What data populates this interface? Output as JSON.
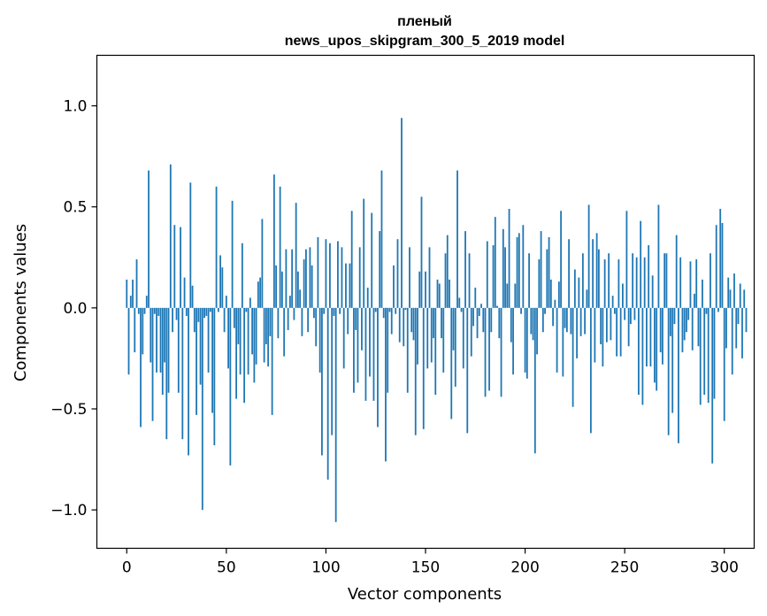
{
  "chart_data": {
    "type": "bar",
    "title": [
      "пленый",
      "news_upos_skipgram_300_5_2019 model"
    ],
    "xlabel": "Vector components",
    "ylabel": "Components values",
    "xlim": [
      -15,
      315
    ],
    "ylim": [
      -1.19,
      1.25
    ],
    "xticks": [
      0,
      50,
      100,
      150,
      200,
      250,
      300
    ],
    "yticks": [
      -1.0,
      -0.5,
      0.0,
      0.5,
      1.0
    ],
    "ytick_labels": [
      "−1.0",
      "−0.5",
      "0.0",
      "0.5",
      "1.0"
    ],
    "bar_color": "#1f77b4",
    "values": [
      0.14,
      -0.33,
      0.06,
      0.14,
      -0.22,
      0.24,
      -0.03,
      -0.59,
      -0.23,
      -0.03,
      0.06,
      0.68,
      -0.27,
      -0.56,
      -0.03,
      -0.32,
      -0.04,
      -0.32,
      -0.43,
      -0.27,
      -0.65,
      -0.42,
      0.71,
      -0.12,
      0.41,
      -0.06,
      -0.42,
      0.4,
      -0.65,
      0.15,
      -0.04,
      -0.73,
      0.62,
      0.11,
      -0.12,
      -0.53,
      -0.07,
      -0.38,
      -1.0,
      -0.05,
      -0.04,
      -0.32,
      -0.02,
      -0.52,
      -0.68,
      0.6,
      -0.02,
      0.26,
      0.2,
      -0.12,
      0.06,
      -0.3,
      -0.78,
      0.53,
      -0.1,
      -0.45,
      -0.18,
      -0.33,
      0.32,
      -0.47,
      -0.02,
      -0.33,
      0.05,
      -0.23,
      -0.37,
      -0.28,
      0.13,
      0.15,
      0.44,
      -0.27,
      -0.18,
      -0.29,
      -0.14,
      -0.53,
      0.66,
      0.21,
      -0.15,
      0.6,
      0.18,
      -0.24,
      0.29,
      -0.11,
      0.06,
      0.29,
      -0.06,
      0.52,
      0.18,
      0.09,
      -0.14,
      0.24,
      0.29,
      -0.12,
      0.3,
      0.21,
      -0.05,
      -0.19,
      0.35,
      -0.32,
      -0.73,
      -0.03,
      0.34,
      -0.85,
      0.32,
      -0.63,
      -0.04,
      -1.06,
      0.33,
      -0.03,
      0.3,
      -0.3,
      0.22,
      -0.13,
      0.22,
      0.48,
      -0.42,
      -0.11,
      -0.37,
      0.3,
      -0.21,
      0.54,
      -0.46,
      0.1,
      -0.34,
      0.47,
      -0.46,
      -0.02,
      -0.59,
      0.38,
      0.68,
      -0.05,
      -0.76,
      -0.42,
      -0.02,
      -0.13,
      0.21,
      -0.03,
      0.34,
      -0.17,
      0.94,
      -0.19,
      -0.01,
      -0.42,
      0.3,
      -0.12,
      -0.16,
      -0.63,
      -0.28,
      0.18,
      0.55,
      -0.6,
      0.18,
      -0.3,
      0.3,
      -0.27,
      -0.15,
      -0.43,
      0.14,
      0.12,
      -0.15,
      -0.32,
      0.27,
      0.36,
      0.14,
      -0.55,
      -0.21,
      -0.39,
      0.68,
      0.05,
      -0.02,
      -0.3,
      0.38,
      -0.62,
      0.27,
      -0.24,
      -0.09,
      0.1,
      -0.15,
      -0.04,
      0.02,
      -0.12,
      -0.44,
      0.33,
      -0.41,
      -0.12,
      0.31,
      0.45,
      0.01,
      -0.15,
      -0.44,
      0.39,
      0.3,
      0.12,
      0.49,
      -0.17,
      -0.33,
      0.12,
      0.35,
      0.37,
      -0.03,
      0.41,
      -0.32,
      -0.35,
      0.27,
      -0.13,
      -0.16,
      -0.72,
      -0.23,
      0.24,
      0.38,
      -0.12,
      -0.03,
      0.29,
      0.35,
      0.14,
      -0.09,
      0.04,
      -0.32,
      0.13,
      0.48,
      -0.34,
      -0.1,
      -0.12,
      0.34,
      -0.13,
      -0.49,
      0.19,
      -0.25,
      0.15,
      -0.14,
      0.27,
      -0.13,
      0.09,
      0.51,
      -0.62,
      0.34,
      -0.27,
      0.37,
      0.29,
      -0.18,
      -0.29,
      0.24,
      -0.17,
      0.27,
      -0.16,
      0.06,
      -0.03,
      -0.24,
      0.24,
      -0.24,
      0.12,
      -0.06,
      0.48,
      -0.19,
      -0.08,
      0.27,
      -0.06,
      0.25,
      -0.43,
      0.43,
      -0.48,
      0.25,
      -0.29,
      0.31,
      -0.29,
      0.16,
      -0.37,
      -0.41,
      0.51,
      -0.22,
      -0.28,
      0.27,
      0.27,
      -0.63,
      -0.14,
      -0.52,
      -0.08,
      0.36,
      -0.67,
      0.25,
      -0.22,
      -0.16,
      -0.12,
      -0.06,
      0.23,
      -0.21,
      0.07,
      0.24,
      -0.19,
      -0.48,
      0.14,
      -0.43,
      -0.03,
      -0.47,
      0.27,
      -0.77,
      -0.45,
      0.41,
      -0.02,
      0.49,
      0.42,
      -0.56,
      -0.2,
      0.15,
      0.09,
      -0.33,
      0.17,
      -0.2,
      -0.08,
      0.12,
      -0.25,
      0.09,
      -0.12
    ]
  }
}
